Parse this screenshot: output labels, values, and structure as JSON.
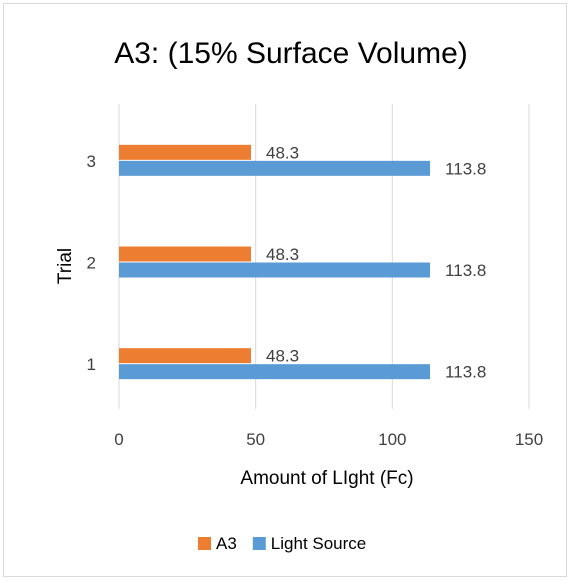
{
  "chart_data": {
    "type": "bar",
    "orientation": "horizontal",
    "title": "A3: (15% Surface Volume)",
    "xlabel": "Amount of LIght (Fc)",
    "ylabel": "Trial",
    "categories": [
      "1",
      "2",
      "3"
    ],
    "series": [
      {
        "name": "A3",
        "color": "#ed7d31",
        "values": [
          48.3,
          48.3,
          48.3
        ]
      },
      {
        "name": "Light Source",
        "color": "#5b9bd5",
        "values": [
          113.8,
          113.8,
          113.8
        ]
      }
    ],
    "xlim": [
      0,
      150
    ],
    "xticks": [
      0,
      50,
      100,
      150
    ],
    "grid": "vertical",
    "legend_position": "bottom",
    "data_labels": true
  }
}
